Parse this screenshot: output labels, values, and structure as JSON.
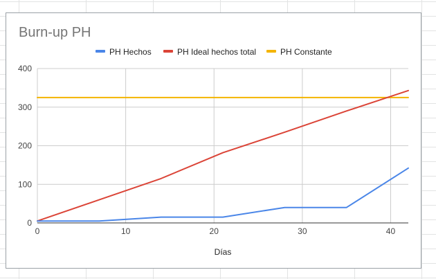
{
  "chart_data": {
    "type": "line",
    "title": "Burn-up PH",
    "xlabel": "Días",
    "ylabel": "",
    "xlim": [
      0,
      42
    ],
    "ylim": [
      0,
      400
    ],
    "xticks": [
      0,
      10,
      20,
      30,
      40
    ],
    "yticks": [
      0,
      100,
      200,
      300,
      400
    ],
    "grid": true,
    "legend_position": "top",
    "series": [
      {
        "name": "PH Hechos",
        "color": "#4a86e8",
        "x": [
          0,
          7,
          14,
          21,
          28,
          35,
          42
        ],
        "y": [
          5,
          5,
          15,
          15,
          40,
          40,
          142
        ]
      },
      {
        "name": "PH Ideal hechos total",
        "color": "#db4437",
        "x": [
          0,
          7,
          14,
          21,
          28,
          35,
          42
        ],
        "y": [
          5,
          60,
          115,
          182,
          235,
          290,
          343
        ]
      },
      {
        "name": "PH Constante",
        "color": "#f4b400",
        "x": [
          0,
          42
        ],
        "y": [
          325,
          325
        ]
      }
    ]
  }
}
